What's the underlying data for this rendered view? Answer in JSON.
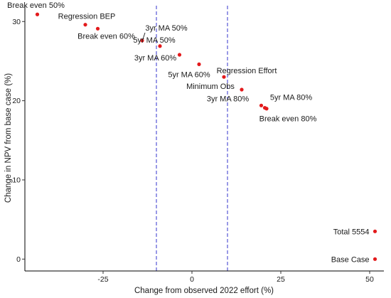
{
  "chart_data": {
    "type": "scatter",
    "xlabel": "Change from observed 2022 effort (%)",
    "ylabel": "Change in NPV from base case (%)",
    "xlim": [
      -47,
      54
    ],
    "ylim": [
      -1.5,
      32
    ],
    "x_ticks": [
      -25,
      0,
      25,
      50
    ],
    "x_tick_labels": [
      "-25",
      "0",
      "25",
      "50"
    ],
    "y_ticks": [
      0,
      10,
      20,
      30
    ],
    "y_tick_labels": [
      "0",
      "10",
      "20",
      "30"
    ],
    "reference_lines": [
      {
        "orientation": "vertical",
        "x": -10,
        "style": "dashed",
        "color": "#3333cc"
      },
      {
        "orientation": "vertical",
        "x": 10,
        "style": "dashed",
        "color": "#3333cc"
      }
    ],
    "grid": false,
    "point_color": "#e31a1c",
    "points": [
      {
        "label": "Break even 50%",
        "x": -43.5,
        "y": 30.9
      },
      {
        "label": "Regression BEP",
        "x": -30,
        "y": 29.6
      },
      {
        "label": "Break even 60%",
        "x": -26.5,
        "y": 29.1
      },
      {
        "label": "3yr MA 50%",
        "x": -14,
        "y": 27.6
      },
      {
        "label": "5yr MA 50%",
        "x": -9,
        "y": 26.9
      },
      {
        "label": "3yr MA 60%",
        "x": -3.5,
        "y": 25.8
      },
      {
        "label": "5yr MA 60%",
        "x": 2,
        "y": 24.6
      },
      {
        "label": "Regression Effort",
        "x": 9,
        "y": 23
      },
      {
        "label": "Minimum Obs",
        "x": 14,
        "y": 21.4
      },
      {
        "label": "3yr MA 80%",
        "x": 19.5,
        "y": 19.4
      },
      {
        "label": "5yr MA 80%",
        "x": 20.5,
        "y": 19.1
      },
      {
        "label": "Break even 80%",
        "x": 21,
        "y": 19
      },
      {
        "label": "Total 5554",
        "x": 51.5,
        "y": 3.5
      },
      {
        "label": "Base Case",
        "x": 51.5,
        "y": 0
      }
    ]
  }
}
